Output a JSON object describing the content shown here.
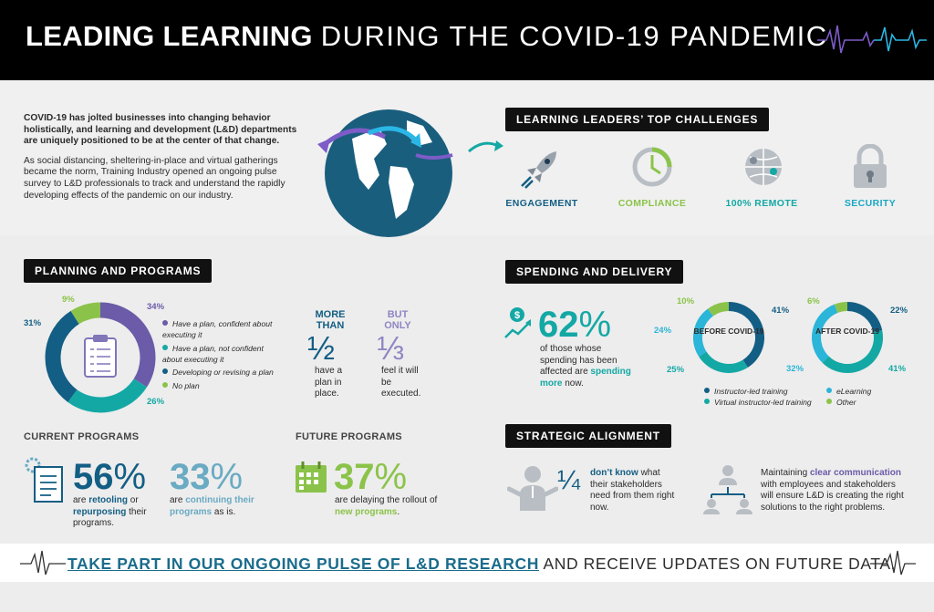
{
  "header": {
    "title_bold": "LEADING LEARNING",
    "title_light": "DURING THE COVID-19 PANDEMIC"
  },
  "intro": {
    "bold": "COVID-19 has jolted businesses into changing behavior holistically, and learning and development (L&D) departments are uniquely positioned to be at the center of that change.",
    "body": "As social distancing, sheltering-in-place and virtual gatherings became the norm, Training Industry opened an ongoing pulse survey to L&D professionals to track and understand the rapidly developing effects of the pandemic on our industry."
  },
  "challenges": {
    "title": "LEARNING LEADERS’ TOP CHALLENGES",
    "items": [
      {
        "label": "ENGAGEMENT",
        "icon": "rocket-icon",
        "color": "#135e84"
      },
      {
        "label": "COMPLIANCE",
        "icon": "clock-icon",
        "color": "#8bc34a"
      },
      {
        "label": "100% REMOTE",
        "icon": "globe-network-icon",
        "color": "#14a8a5"
      },
      {
        "label": "SECURITY",
        "icon": "lock-icon",
        "color": "#1aa7c4"
      }
    ]
  },
  "planning": {
    "title": "PLANNING AND PROGRAMS",
    "donut": {
      "type": "pie",
      "values": [
        34,
        26,
        31,
        9
      ],
      "labels": [
        "34%",
        "26%",
        "31%",
        "9%"
      ],
      "colors": [
        "#6b5ba8",
        "#14a8a5",
        "#135e84",
        "#8bc34a"
      ]
    },
    "legend": [
      "Have a plan, confident about executing it",
      "Have a plan, not confident about executing it",
      "Developing or revising a plan",
      "No plan"
    ],
    "more": {
      "top": "MORE THAN",
      "frac": "½",
      "desc": "have a plan in place."
    },
    "but": {
      "top": "BUT ONLY",
      "frac": "⅓",
      "desc": "feel it will be executed."
    }
  },
  "current": {
    "title": "CURRENT PROGRAMS",
    "a": {
      "value": "56",
      "unit": "%",
      "pre": "are",
      "hl1": "retooling",
      "mid": "or",
      "hl2": "repurposing",
      "post": "their programs."
    },
    "b": {
      "value": "33",
      "unit": "%",
      "pre": "are",
      "hl": "continuing their programs",
      "post": "as is."
    }
  },
  "future": {
    "title": "FUTURE PROGRAMS",
    "value": "37",
    "unit": "%",
    "pre": "are delaying the rollout of",
    "hl": "new programs",
    "post": "."
  },
  "spending": {
    "title": "SPENDING AND DELIVERY",
    "value": "62",
    "unit": "%",
    "text": "of those whose spending has been affected are",
    "hl": "spending more",
    "post": "now.",
    "before": {
      "label": "BEFORE COVID-19",
      "values": [
        41,
        25,
        24,
        10
      ],
      "labels": [
        "41%",
        "25%",
        "24%",
        "10%"
      ]
    },
    "after": {
      "label": "AFTER COVID-19",
      "values": [
        22,
        41,
        32,
        6
      ],
      "labels": [
        "22%",
        "41%",
        "32%",
        "6%"
      ]
    },
    "colors": [
      "#135e84",
      "#14a8a5",
      "#2bb5d8",
      "#8bc34a"
    ],
    "legend": [
      "Instructor-led training",
      "Virtual instructor-led training",
      "eLearning",
      "Other"
    ]
  },
  "strategic": {
    "title": "STRATEGIC ALIGNMENT",
    "frac": "¼",
    "hl": "don’t know",
    "text": "what their stakeholders need from them right now.",
    "pre2": "Maintaining",
    "hl2": "clear communication",
    "text2": "with employees and stakeholders will ensure L&D is creating the right solutions to the right problems."
  },
  "footer": {
    "bold": "TAKE PART IN OUR ONGOING PULSE OF L&D RESEARCH",
    "rest": "AND RECEIVE UPDATES ON FUTURE DATA."
  }
}
